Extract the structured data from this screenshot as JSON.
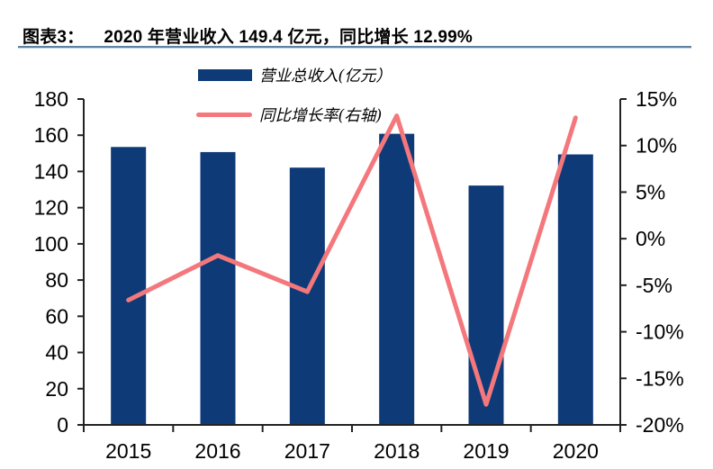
{
  "header": {
    "figure_label": "图表3：",
    "title": "2020 年营业收入 149.4 亿元，同比增长 12.99%"
  },
  "colors": {
    "bar": "#0e3a78",
    "line": "#f4777c",
    "axis": "#222222",
    "divider_dark": "#60829f",
    "divider_light": "#c3d7ea"
  },
  "legend": {
    "items": [
      {
        "label": "营业总收入(亿元）",
        "type": "bar",
        "color": "#0e3a78"
      },
      {
        "label": "同比增长率(右轴)",
        "type": "line",
        "color": "#f4777c"
      }
    ]
  },
  "chart_data": {
    "type": "bar",
    "subtype": "bar+line dual axis",
    "title": "2020 年营业收入 149.4 亿元，同比增长 12.99%",
    "categories": [
      "2015",
      "2016",
      "2017",
      "2018",
      "2019",
      "2020"
    ],
    "series": [
      {
        "name": "营业总收入(亿元）",
        "type": "bar",
        "axis": "left",
        "color": "#0e3a78",
        "values": [
          153.5,
          150.7,
          142.1,
          160.8,
          132.2,
          149.4
        ]
      },
      {
        "name": "同比增长率(右轴)",
        "type": "line",
        "axis": "right",
        "color": "#f4777c",
        "values": [
          -6.6,
          -1.8,
          -5.7,
          13.2,
          -17.8,
          12.99
        ]
      }
    ],
    "left_axis": {
      "min": 0,
      "max": 180,
      "step": 20,
      "ticks": [
        "0",
        "20",
        "40",
        "60",
        "80",
        "100",
        "120",
        "140",
        "160",
        "180"
      ]
    },
    "right_axis": {
      "min": -20,
      "max": 15,
      "step": 5,
      "format": "percent",
      "ticks": [
        "-20%",
        "-15%",
        "-10%",
        "-5%",
        "0%",
        "5%",
        "10%",
        "15%"
      ]
    },
    "grid": false,
    "legend_position": "top"
  }
}
